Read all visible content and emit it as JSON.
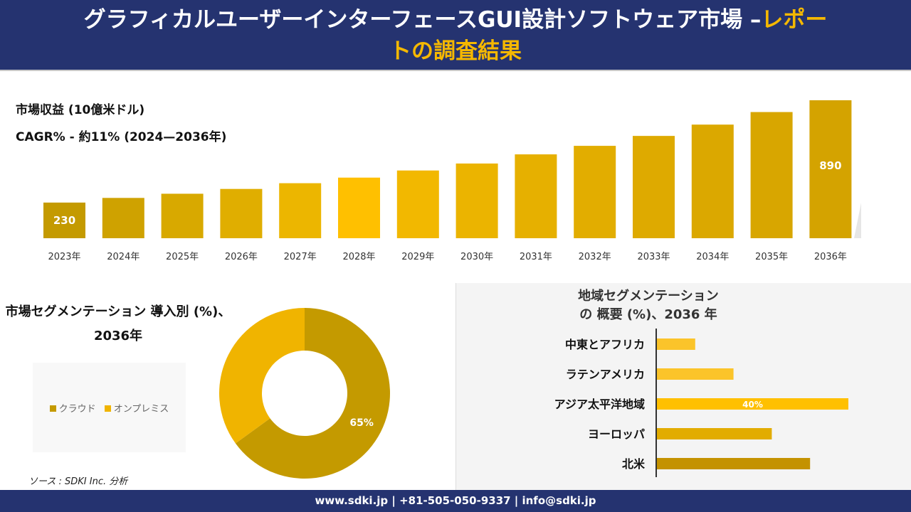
{
  "header": {
    "title_white": "グラフィカルユーザーインターフェースGUI設計ソフトウェア市場 –",
    "title_highlight_1": "レポー",
    "title_highlight_2": "トの調査結果"
  },
  "revenue": {
    "label": "市場収益 (10億米ドル)",
    "cagr": "CAGR% - 約11% (2024—2036年)"
  },
  "chart_data": [
    {
      "type": "bar",
      "categories": [
        "2023年",
        "2024年",
        "2025年",
        "2026年",
        "2027年",
        "2028年",
        "2029年",
        "2030年",
        "2031年",
        "2032年",
        "2033年",
        "2034年",
        "2035年",
        "2036年"
      ],
      "values": [
        230,
        260,
        287,
        318,
        355,
        391,
        437,
        482,
        541,
        596,
        660,
        733,
        814,
        890
      ],
      "data_labels": {
        "0": "230",
        "13": "890"
      },
      "title": "市場収益 (10億米ドル)",
      "grid": false,
      "colors": [
        "#c49a00",
        "#cfa200",
        "#d8a900",
        "#e0ae00",
        "#ecb600",
        "#ffc000",
        "#f2b800",
        "#ebb400",
        "#e6b000",
        "#e2ad00",
        "#deaa00",
        "#dba800",
        "#d8a600",
        "#d4a300"
      ]
    },
    {
      "type": "pie",
      "title": "市場セグメンテーション 導入別 (%)、2036年",
      "categories": [
        "クラウド",
        "オンプレミス"
      ],
      "values": [
        65,
        35
      ],
      "data_labels": [
        "65%",
        ""
      ],
      "colors": [
        "#c49a00",
        "#f0b400"
      ],
      "legend": "left"
    },
    {
      "type": "bar",
      "orientation": "horizontal",
      "title": "地域セグメンテーションの 概要 (%)、2036 年",
      "categories": [
        "中東とアフリカ",
        "ラテンアメリカ",
        "アジア太平洋地域",
        "ヨーロッパ",
        "北米"
      ],
      "values": [
        8,
        16,
        40,
        24,
        32
      ],
      "data_labels": [
        "",
        "",
        "40%",
        "",
        ""
      ],
      "colors": [
        "#fbc42a",
        "#fbc42a",
        "#ffc000",
        "#e2ac00",
        "#c49200"
      ]
    }
  ],
  "source": "ソース : SDKI Inc. 分析",
  "footer": "www.sdki.jp | +81-505-050-9337 | info@sdki.jp"
}
